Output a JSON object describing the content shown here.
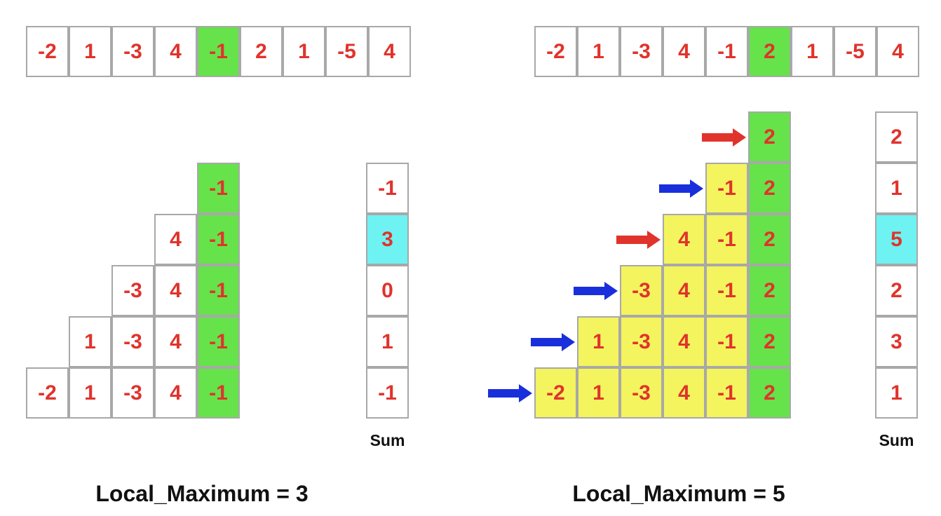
{
  "colors": {
    "text": "#e0332c",
    "border": "#a8a8a8",
    "current": "#66e24a",
    "subarray": "#f4f45e",
    "max": "#6ef2f2",
    "arrow_red": "#e0332c",
    "arrow_blue": "#1a2fdc"
  },
  "left": {
    "array": [
      "-2",
      "1",
      "-3",
      "4",
      "-1",
      "2",
      "1",
      "-5",
      "4"
    ],
    "current_index": 4,
    "sums": [
      "-1",
      "3",
      "0",
      "1",
      "-1"
    ],
    "max_row": 1,
    "sum_label": "Sum",
    "title": "Local_Maximum = 3"
  },
  "right": {
    "array": [
      "-2",
      "1",
      "-3",
      "4",
      "-1",
      "2",
      "1",
      "-5",
      "4"
    ],
    "current_index": 5,
    "sums": [
      "2",
      "1",
      "5",
      "2",
      "3",
      "1"
    ],
    "max_row": 2,
    "sum_label": "Sum",
    "arrows": [
      "red",
      "blue",
      "red",
      "blue",
      "blue",
      "blue"
    ],
    "title": "Local_Maximum = 5"
  }
}
